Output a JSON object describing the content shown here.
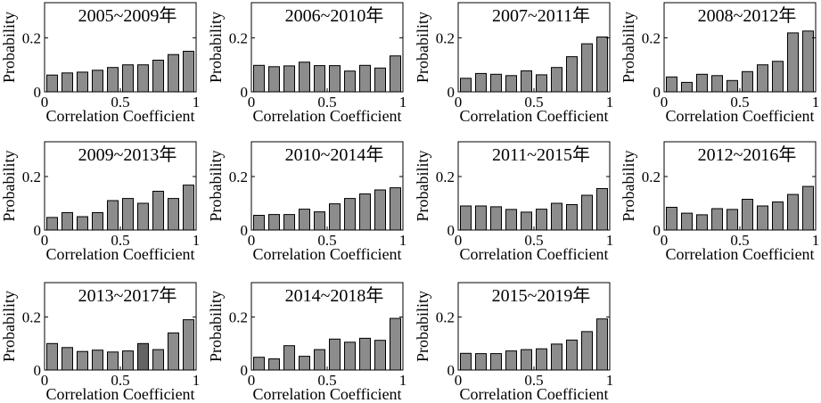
{
  "chart_data": [
    {
      "type": "bar",
      "title": "2005~2009年",
      "xlabel": "Correlation Coefficient",
      "ylabel": "Probability",
      "xlim": [
        0,
        1
      ],
      "ylim": [
        0,
        0.33
      ],
      "xticks": [
        "0",
        "0.5",
        "1"
      ],
      "yticks": [
        "0",
        "0.2"
      ],
      "bin_centers": [
        0.05,
        0.15,
        0.25,
        0.35,
        0.45,
        0.55,
        0.65,
        0.75,
        0.85,
        0.95
      ],
      "values": [
        0.062,
        0.07,
        0.073,
        0.08,
        0.09,
        0.1,
        0.1,
        0.117,
        0.138,
        0.15
      ]
    },
    {
      "type": "bar",
      "title": "2006~2010年",
      "xlabel": "Correlation Coefficient",
      "ylabel": "Probability",
      "xlim": [
        0,
        1
      ],
      "ylim": [
        0,
        0.33
      ],
      "xticks": [
        "0",
        "0.5",
        "1"
      ],
      "yticks": [
        "0",
        "0.2"
      ],
      "bin_centers": [
        0.05,
        0.15,
        0.25,
        0.35,
        0.45,
        0.55,
        0.65,
        0.75,
        0.85,
        0.95
      ],
      "values": [
        0.098,
        0.093,
        0.096,
        0.11,
        0.097,
        0.097,
        0.077,
        0.098,
        0.088,
        0.133
      ]
    },
    {
      "type": "bar",
      "title": "2007~2011年",
      "xlabel": "Correlation Coefficient",
      "ylabel": "Probability",
      "xlim": [
        0,
        1
      ],
      "ylim": [
        0,
        0.33
      ],
      "xticks": [
        "0",
        "0.5",
        "1"
      ],
      "yticks": [
        "0",
        "0.2"
      ],
      "bin_centers": [
        0.05,
        0.15,
        0.25,
        0.35,
        0.45,
        0.55,
        0.65,
        0.75,
        0.85,
        0.95
      ],
      "values": [
        0.05,
        0.068,
        0.065,
        0.06,
        0.078,
        0.063,
        0.09,
        0.13,
        0.178,
        0.203
      ]
    },
    {
      "type": "bar",
      "title": "2008~2012年",
      "xlabel": "Correlation Coefficient",
      "ylabel": "Probability",
      "xlim": [
        0,
        1
      ],
      "ylim": [
        0,
        0.33
      ],
      "xticks": [
        "0",
        "0.5",
        "1"
      ],
      "yticks": [
        "0",
        "0.2"
      ],
      "bin_centers": [
        0.05,
        0.15,
        0.25,
        0.35,
        0.45,
        0.55,
        0.65,
        0.75,
        0.85,
        0.95
      ],
      "values": [
        0.055,
        0.035,
        0.065,
        0.06,
        0.042,
        0.075,
        0.1,
        0.113,
        0.218,
        0.225
      ]
    },
    {
      "type": "bar",
      "title": "2009~2013年",
      "xlabel": "Correlation Coefficient",
      "ylabel": "Probability",
      "xlim": [
        0,
        1
      ],
      "ylim": [
        0,
        0.33
      ],
      "xticks": [
        "0",
        "0.5",
        "1"
      ],
      "yticks": [
        "0",
        "0.2"
      ],
      "bin_centers": [
        0.05,
        0.15,
        0.25,
        0.35,
        0.45,
        0.55,
        0.65,
        0.75,
        0.85,
        0.95
      ],
      "values": [
        0.047,
        0.065,
        0.05,
        0.065,
        0.11,
        0.118,
        0.1,
        0.145,
        0.118,
        0.168
      ]
    },
    {
      "type": "bar",
      "title": "2010~2014年",
      "xlabel": "Correlation Coefficient",
      "ylabel": "Probability",
      "xlim": [
        0,
        1
      ],
      "ylim": [
        0,
        0.33
      ],
      "xticks": [
        "0",
        "0.5",
        "1"
      ],
      "yticks": [
        "0",
        "0.2"
      ],
      "bin_centers": [
        0.05,
        0.15,
        0.25,
        0.35,
        0.45,
        0.55,
        0.65,
        0.75,
        0.85,
        0.95
      ],
      "values": [
        0.055,
        0.058,
        0.058,
        0.078,
        0.068,
        0.098,
        0.118,
        0.135,
        0.15,
        0.158
      ]
    },
    {
      "type": "bar",
      "title": "2011~2015年",
      "xlabel": "Correlation Coefficient",
      "ylabel": "Probability",
      "xlim": [
        0,
        1
      ],
      "ylim": [
        0,
        0.33
      ],
      "xticks": [
        "0",
        "0.5",
        "1"
      ],
      "yticks": [
        "0",
        "0.2"
      ],
      "bin_centers": [
        0.05,
        0.15,
        0.25,
        0.35,
        0.45,
        0.55,
        0.65,
        0.75,
        0.85,
        0.95
      ],
      "values": [
        0.09,
        0.09,
        0.087,
        0.077,
        0.067,
        0.078,
        0.1,
        0.095,
        0.13,
        0.155
      ]
    },
    {
      "type": "bar",
      "title": "2012~2016年",
      "xlabel": "Correlation Coefficient",
      "ylabel": "Probability",
      "xlim": [
        0,
        1
      ],
      "ylim": [
        0,
        0.33
      ],
      "xticks": [
        "0",
        "0.5",
        "1"
      ],
      "yticks": [
        "0",
        "0.2"
      ],
      "bin_centers": [
        0.05,
        0.15,
        0.25,
        0.35,
        0.45,
        0.55,
        0.65,
        0.75,
        0.85,
        0.95
      ],
      "values": [
        0.085,
        0.063,
        0.057,
        0.08,
        0.077,
        0.115,
        0.09,
        0.105,
        0.133,
        0.163
      ]
    },
    {
      "type": "bar",
      "title": "2013~2017年",
      "xlabel": "Correlation Coefficient",
      "ylabel": "Probability",
      "xlim": [
        0,
        1
      ],
      "ylim": [
        0,
        0.33
      ],
      "xticks": [
        "0",
        "0.5",
        "1"
      ],
      "yticks": [
        "0",
        "0.2"
      ],
      "bin_centers": [
        0.05,
        0.15,
        0.25,
        0.35,
        0.45,
        0.55,
        0.65,
        0.75,
        0.85,
        0.95
      ],
      "values": [
        0.1,
        0.085,
        0.07,
        0.075,
        0.068,
        0.072,
        0.1,
        0.077,
        0.14,
        0.19
      ],
      "highlight_bin": 6
    },
    {
      "type": "bar",
      "title": "2014~2018年",
      "xlabel": "Correlation Coefficient",
      "ylabel": "Probability",
      "xlim": [
        0,
        1
      ],
      "ylim": [
        0,
        0.33
      ],
      "xticks": [
        "0",
        "0.5",
        "1"
      ],
      "yticks": [
        "0",
        "0.2"
      ],
      "bin_centers": [
        0.05,
        0.15,
        0.25,
        0.35,
        0.45,
        0.55,
        0.65,
        0.75,
        0.85,
        0.95
      ],
      "values": [
        0.048,
        0.042,
        0.092,
        0.052,
        0.077,
        0.117,
        0.105,
        0.12,
        0.112,
        0.195
      ]
    },
    {
      "type": "bar",
      "title": "2015~2019年",
      "xlabel": "Correlation Coefficient",
      "ylabel": "Probability",
      "xlim": [
        0,
        1
      ],
      "ylim": [
        0,
        0.33
      ],
      "xticks": [
        "0",
        "0.5",
        "1"
      ],
      "yticks": [
        "0",
        "0.2"
      ],
      "bin_centers": [
        0.05,
        0.15,
        0.25,
        0.35,
        0.45,
        0.55,
        0.65,
        0.75,
        0.85,
        0.95
      ],
      "values": [
        0.063,
        0.062,
        0.062,
        0.072,
        0.077,
        0.08,
        0.098,
        0.113,
        0.145,
        0.193
      ]
    }
  ]
}
